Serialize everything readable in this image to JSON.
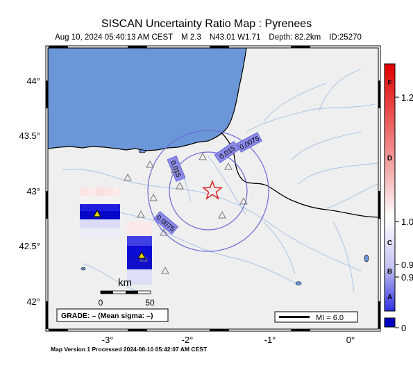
{
  "header": {
    "title": "SISCAN Uncertainty Ratio Map : Pyrenees",
    "event": {
      "datetime": "Aug 10, 2024 05:40:13 AM CEST",
      "magnitude": "M 2.3",
      "location": "N43.01 W1.71",
      "depth": "Depth: 82.2km",
      "id": "ID:25270"
    }
  },
  "map": {
    "lat_ticks": [
      "44",
      "43.5",
      "43",
      "42.5",
      "42"
    ],
    "lon_ticks": [
      "-3",
      "-2",
      "-1",
      "0"
    ],
    "contour_labels": [
      "0.015",
      "0.0075",
      "0.015",
      "0.0075"
    ],
    "scale_bar": {
      "unit": "km",
      "labels": [
        "0",
        "50"
      ]
    },
    "grade_box": "GRADE: – (Mean sigma: –)",
    "legend_box": "MI = 6.0",
    "epicenter": {
      "lat": 43.01,
      "lon": -1.71
    }
  },
  "colorbar": {
    "letters": [
      "F",
      "D",
      "C",
      "B",
      "A"
    ],
    "values": [
      "1.2",
      "1.0",
      "0.9",
      "0.9",
      "0"
    ]
  },
  "footer": {
    "text": "Map Version 1 Processed 2024-08-10 05:42:07 AM CEST"
  },
  "colors": {
    "ocean": "#6b96d8",
    "land": "#efefef",
    "river": "#a9c4e6",
    "contour": "#6a6ad8",
    "epicenter": "#e02020",
    "station_high": "#e8d800"
  }
}
